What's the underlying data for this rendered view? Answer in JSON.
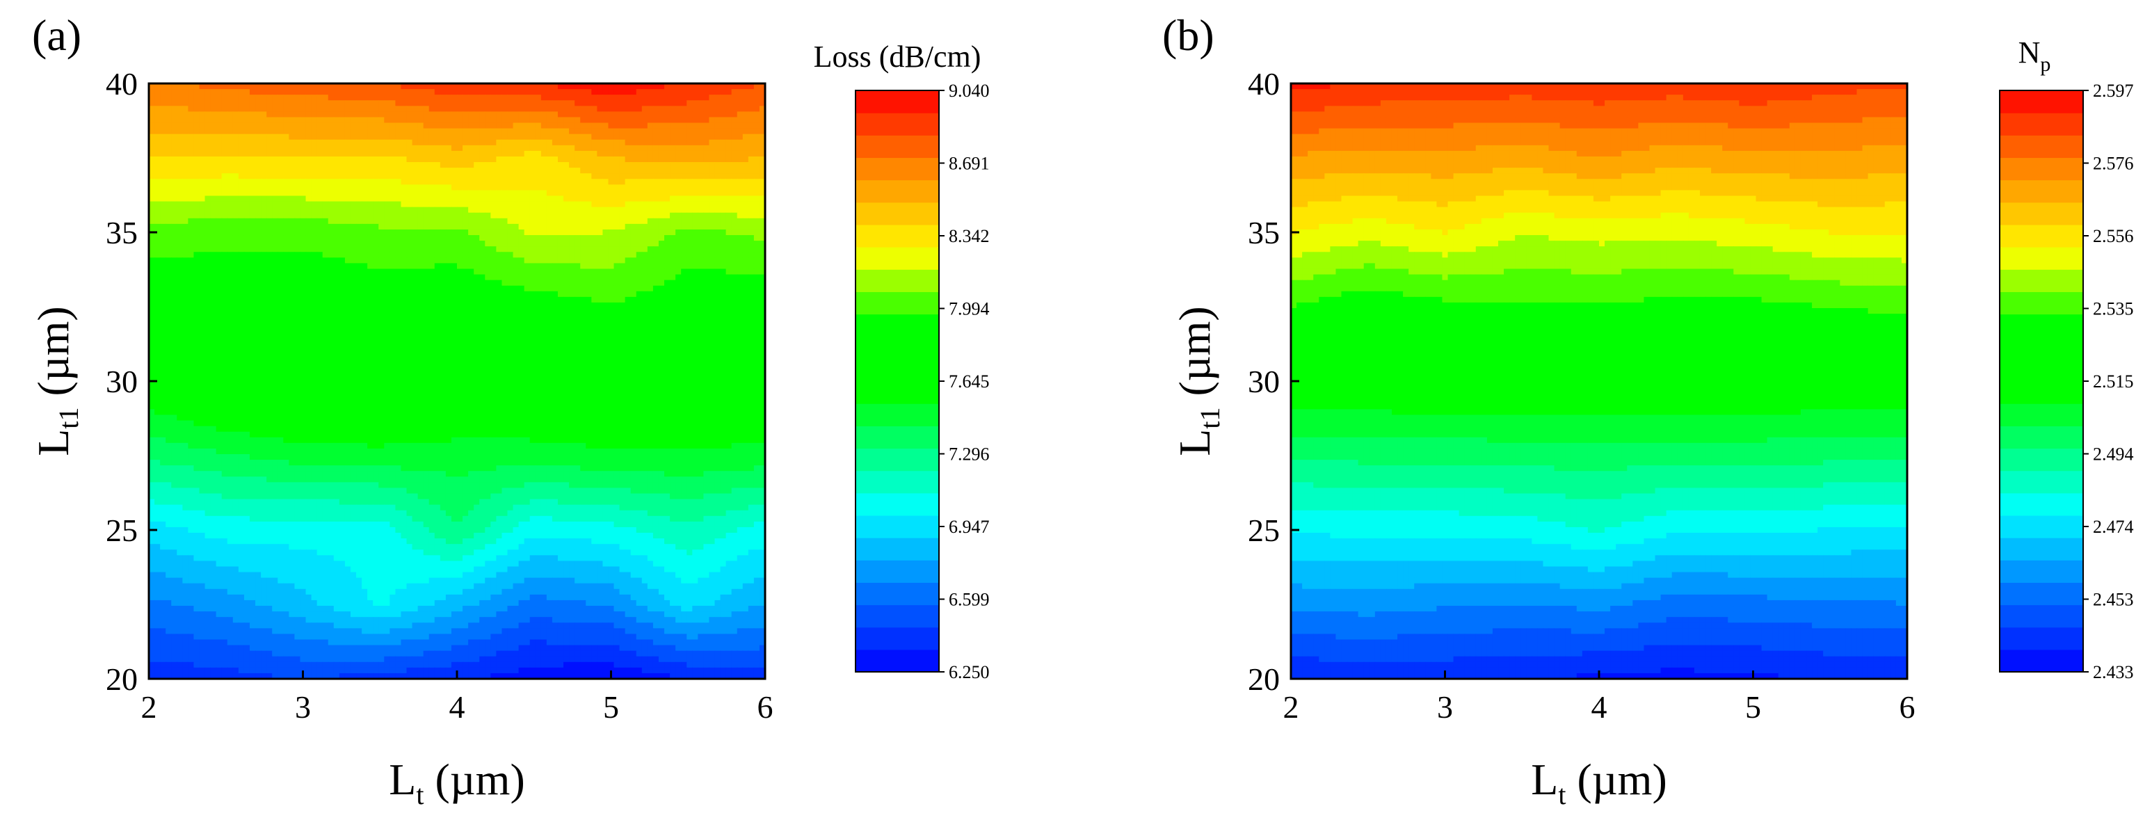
{
  "chart_data": [
    {
      "type": "heatmap",
      "panel_label": "(a)",
      "title": "",
      "xlabel_main": "L",
      "xlabel_sub": "t",
      "xlabel_unit": " (µm)",
      "ylabel_main": "L",
      "ylabel_sub": "t1",
      "ylabel_unit": " (µm)",
      "xlim": [
        2,
        6
      ],
      "ylim": [
        20,
        40
      ],
      "x_ticks": [
        "2",
        "3",
        "4",
        "5",
        "6"
      ],
      "y_ticks": [
        "20",
        "25",
        "30",
        "35",
        "40"
      ],
      "x": [
        2,
        2.5,
        3,
        3.5,
        4,
        4.5,
        5,
        5.5,
        6
      ],
      "y": [
        20,
        22.5,
        25,
        27.5,
        30,
        32.5,
        35,
        37.5,
        40
      ],
      "z": [
        [
          6.4,
          6.42,
          6.47,
          6.42,
          6.37,
          6.3,
          6.27,
          6.36,
          6.42
        ],
        [
          6.65,
          6.73,
          6.86,
          7.02,
          6.83,
          6.63,
          6.69,
          6.94,
          6.78
        ],
        [
          6.95,
          7.05,
          7.05,
          7.05,
          7.31,
          7.03,
          7.07,
          7.19,
          7.06
        ],
        [
          7.35,
          7.42,
          7.48,
          7.5,
          7.48,
          7.49,
          7.52,
          7.52,
          7.5
        ],
        [
          7.66,
          7.77,
          7.82,
          7.8,
          7.75,
          7.72,
          7.72,
          7.72,
          7.73
        ],
        [
          7.84,
          7.86,
          7.86,
          7.88,
          7.86,
          7.9,
          7.96,
          7.88,
          7.86
        ],
        [
          8.04,
          8.0,
          8.0,
          8.05,
          8.05,
          8.2,
          8.18,
          8.05,
          8.1
        ],
        [
          8.4,
          8.38,
          8.4,
          8.38,
          8.45,
          8.35,
          8.5,
          8.55,
          8.5
        ],
        [
          8.7,
          8.75,
          8.78,
          8.82,
          8.9,
          8.92,
          9.02,
          8.92,
          8.82
        ]
      ],
      "colorbar": {
        "title": "Loss (dB/cm)",
        "min": 6.25,
        "max": 9.04,
        "ticks": [
          "9.040",
          "8.691",
          "8.342",
          "7.994",
          "7.645",
          "7.296",
          "6.947",
          "6.599",
          "6.250"
        ],
        "levels": 26
      }
    },
    {
      "type": "heatmap",
      "panel_label": "(b)",
      "title": "",
      "xlabel_main": "L",
      "xlabel_sub": "t",
      "xlabel_unit": " (µm)",
      "ylabel_main": "L",
      "ylabel_sub": "t1",
      "ylabel_unit": " (µm)",
      "xlim": [
        2,
        6
      ],
      "ylim": [
        20,
        40
      ],
      "x_ticks": [
        "2",
        "3",
        "4",
        "5",
        "6"
      ],
      "y_ticks": [
        "20",
        "25",
        "30",
        "35",
        "40"
      ],
      "x": [
        2,
        2.5,
        3,
        3.5,
        4,
        4.5,
        5,
        5.5,
        6
      ],
      "y": [
        20,
        22.5,
        25,
        27.5,
        30,
        32.5,
        35,
        37.5,
        40
      ],
      "z": [
        [
          2.44,
          2.441,
          2.441,
          2.44,
          2.438,
          2.437,
          2.438,
          2.44,
          2.441
        ],
        [
          2.46,
          2.461,
          2.459,
          2.458,
          2.46,
          2.455,
          2.456,
          2.457,
          2.458
        ],
        [
          2.478,
          2.479,
          2.479,
          2.48,
          2.484,
          2.478,
          2.478,
          2.477,
          2.476
        ],
        [
          2.497,
          2.498,
          2.498,
          2.499,
          2.499,
          2.499,
          2.499,
          2.498,
          2.497
        ],
        [
          2.516,
          2.516,
          2.517,
          2.517,
          2.517,
          2.516,
          2.516,
          2.516,
          2.516
        ],
        [
          2.534,
          2.529,
          2.532,
          2.533,
          2.533,
          2.532,
          2.532,
          2.534,
          2.536
        ],
        [
          2.553,
          2.549,
          2.553,
          2.547,
          2.549,
          2.548,
          2.55,
          2.553,
          2.553
        ],
        [
          2.571,
          2.569,
          2.57,
          2.568,
          2.572,
          2.568,
          2.57,
          2.57,
          2.569
        ],
        [
          2.593,
          2.59,
          2.589,
          2.588,
          2.589,
          2.588,
          2.59,
          2.587,
          2.585
        ]
      ],
      "colorbar": {
        "title_main": "N",
        "title_sub": "p",
        "min": 2.433,
        "max": 2.597,
        "ticks": [
          "2.597",
          "2.576",
          "2.556",
          "2.535",
          "2.515",
          "2.494",
          "2.474",
          "2.453",
          "2.433"
        ],
        "levels": 26
      }
    }
  ]
}
